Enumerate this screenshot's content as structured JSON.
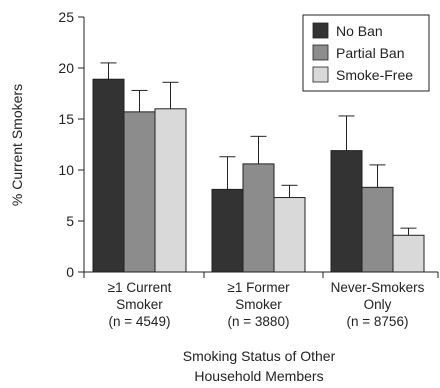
{
  "chart_data": {
    "type": "bar",
    "ylabel": "% Current Smokers",
    "xlabel_lines": [
      "Smoking Status of Other",
      "Household Members"
    ],
    "ylim": [
      0,
      25
    ],
    "yticks": [
      0,
      5,
      10,
      15,
      20,
      25
    ],
    "grid": false,
    "legend_position": "top-right",
    "categories": [
      {
        "lines": [
          "≥1 Current",
          "Smoker",
          "(n = 4549)"
        ]
      },
      {
        "lines": [
          "≥1 Former",
          "Smoker",
          "(n = 3880)"
        ]
      },
      {
        "lines": [
          "Never-Smokers",
          "Only",
          "(n = 8756)"
        ]
      }
    ],
    "series": [
      {
        "name": "No Ban",
        "color": "#333333",
        "values": [
          18.9,
          8.1,
          11.9
        ],
        "err_upper": [
          20.5,
          11.3,
          15.3
        ],
        "err_lower": [
          17.3,
          4.9,
          8.5
        ]
      },
      {
        "name": "Partial Ban",
        "color": "#8c8c8c",
        "values": [
          15.7,
          10.6,
          8.3
        ],
        "err_upper": [
          17.8,
          13.3,
          10.5
        ],
        "err_lower": [
          13.6,
          7.9,
          6.1
        ]
      },
      {
        "name": "Smoke-Free",
        "color": "#d9d9d9",
        "values": [
          16.0,
          7.3,
          3.6
        ],
        "err_upper": [
          18.6,
          8.5,
          4.3
        ],
        "err_lower": [
          13.4,
          6.1,
          2.9
        ]
      }
    ]
  }
}
